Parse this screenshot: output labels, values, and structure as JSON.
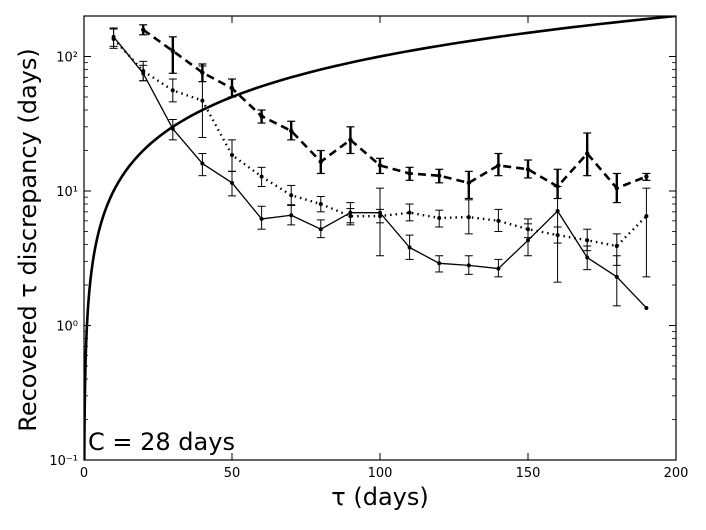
{
  "chart_data": {
    "type": "line",
    "title": "",
    "xlabel": "τ (days)",
    "ylabel": "Recovered τ discrepancy (days)",
    "xlim": [
      0,
      200
    ],
    "ylim": [
      0.1,
      200
    ],
    "yscale": "log",
    "x_ticks": [
      0,
      50,
      100,
      150,
      200
    ],
    "x_tick_labels": [
      "0",
      "50",
      "100",
      "150",
      "200"
    ],
    "y_ticks": [
      0.1,
      1,
      10,
      100
    ],
    "y_tick_labels": [
      "10⁻¹",
      "10⁰",
      "10¹",
      "10²"
    ],
    "annotation": "C = 28 days",
    "reference_curve": {
      "name": "y = x",
      "description": "recovered discrepancy equal to true lag",
      "style": "thick-solid"
    },
    "series": [
      {
        "name": "solid",
        "style": "thin-solid",
        "x": [
          10,
          20,
          30,
          40,
          50,
          60,
          70,
          80,
          90,
          100,
          110,
          120,
          130,
          140,
          150,
          160,
          170,
          180,
          190
        ],
        "y": [
          140,
          75,
          29,
          16,
          11.5,
          6.2,
          6.6,
          5.2,
          6.9,
          6.9,
          3.8,
          2.9,
          2.8,
          2.65,
          4.3,
          7.1,
          3.2,
          2.3,
          1.35
        ],
        "err_low": [
          119,
          66,
          24,
          13,
          9.2,
          5.2,
          5.6,
          4.5,
          5.8,
          3.3,
          3.1,
          2.5,
          2.4,
          2.3,
          3.3,
          2.1,
          2.6,
          1.4,
          1.35
        ],
        "err_high": [
          163,
          86,
          34,
          19,
          14,
          7.7,
          7.9,
          6.1,
          8.2,
          10.5,
          4.7,
          3.3,
          3.3,
          3.1,
          5.7,
          10.8,
          3.9,
          3.3,
          1.35
        ]
      },
      {
        "name": "dotted",
        "style": "dotted",
        "x": [
          10,
          20,
          30,
          40,
          50,
          60,
          70,
          80,
          90,
          100,
          110,
          120,
          130,
          140,
          150,
          160,
          170,
          180,
          190
        ],
        "y": [
          135,
          78,
          56,
          47,
          18.5,
          12.8,
          9.3,
          8.0,
          6.5,
          6.5,
          6.9,
          6.3,
          6.4,
          6.0,
          5.2,
          4.7,
          4.3,
          3.9,
          6.5
        ],
        "err_low": [
          115,
          66,
          46,
          25,
          14,
          10.8,
          7.8,
          7.0,
          5.6,
          5.8,
          6.0,
          5.4,
          4.8,
          5.0,
          4.5,
          4.1,
          3.6,
          2.8,
          2.3
        ],
        "err_high": [
          160,
          92,
          68,
          85,
          24,
          15,
          11,
          9.1,
          7.4,
          7.3,
          8.0,
          7.2,
          8.6,
          7.3,
          6.2,
          5.4,
          5.2,
          4.8,
          10.5
        ]
      },
      {
        "name": "dashed",
        "style": "thick-dashed",
        "x": [
          20,
          30,
          40,
          50,
          60,
          70,
          80,
          90,
          100,
          110,
          120,
          130,
          140,
          150,
          160,
          170,
          180,
          190
        ],
        "y": [
          158,
          110,
          76,
          58,
          36,
          28,
          16.5,
          24,
          15.5,
          13.5,
          13,
          11.5,
          15.5,
          14.5,
          10.8,
          19,
          10.5,
          12.8
        ],
        "err_low": [
          145,
          75,
          65,
          50,
          32,
          24,
          13.5,
          19,
          13.5,
          12,
          11.5,
          8.8,
          13,
          12.5,
          8.8,
          13,
          8.2,
          12
        ],
        "err_high": [
          172,
          140,
          88,
          68,
          40,
          33,
          20,
          30,
          17.5,
          15,
          14.5,
          14,
          19,
          17,
          14.5,
          27,
          13.5,
          13.5
        ]
      }
    ]
  }
}
